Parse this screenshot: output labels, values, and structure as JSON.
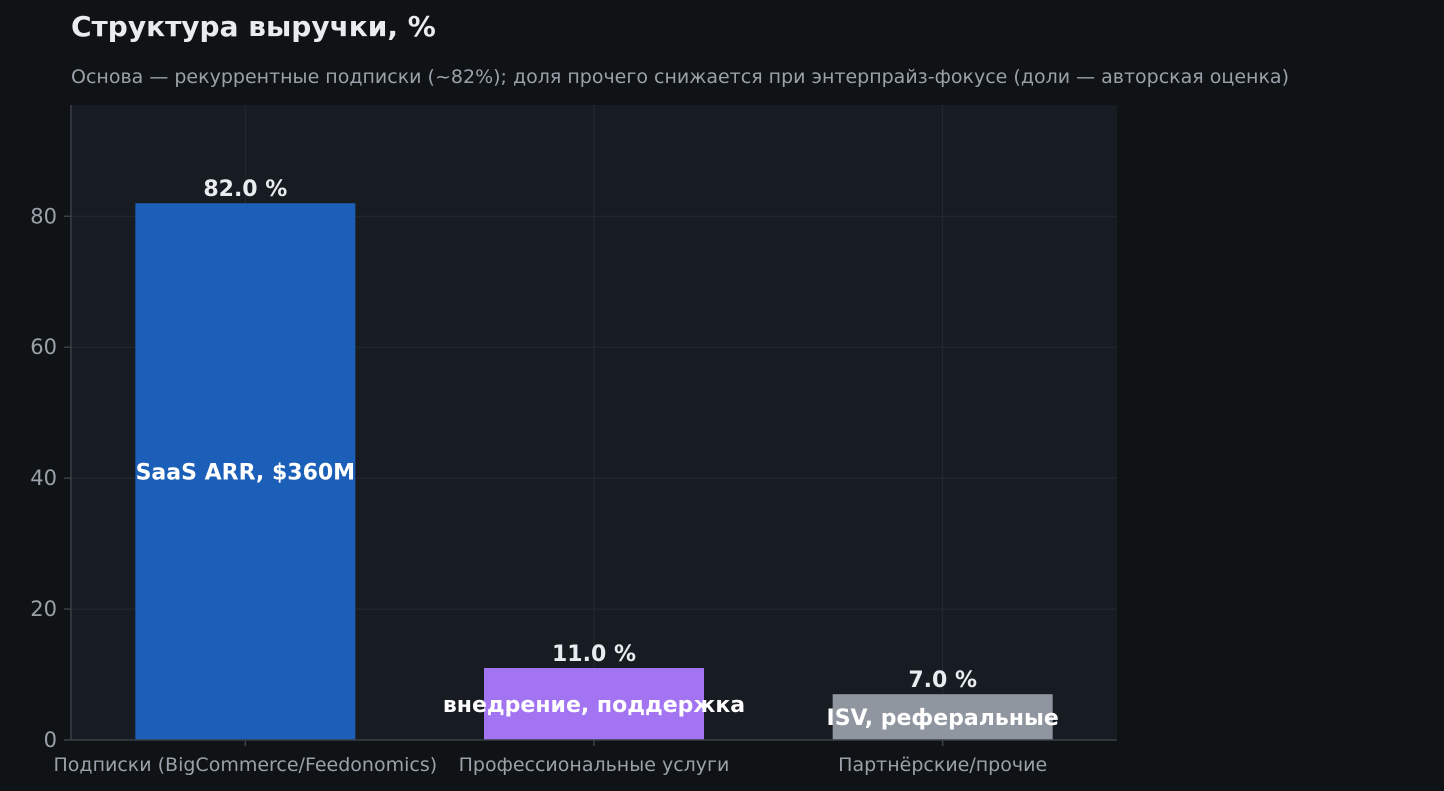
{
  "chart_data": {
    "type": "bar",
    "title": "Структура выручки, %",
    "subtitle": "Основа — рекуррентные подписки (~82%); доля прочего снижается при энтерпрайз-фокусе (доли — авторская оценка)",
    "xlabel": "",
    "ylabel": "",
    "ylim": [
      0,
      97
    ],
    "yticks": [
      0,
      20,
      40,
      60,
      80
    ],
    "grid": true,
    "categories": [
      "Подписки (BigCommerce/Feedonomics)",
      "Профессиональные услуги",
      "Партнёрские/прочие"
    ],
    "values": [
      82.0,
      11.0,
      7.0
    ],
    "value_labels": [
      "82.0 %",
      "11.0 %",
      "7.0 %"
    ],
    "inner_labels": [
      "SaaS ARR, $360M",
      "внедрение, поддержка",
      "ISV, реферальные"
    ],
    "colors": [
      "#1c5fb8",
      "#a274f2",
      "#8f96a0"
    ]
  },
  "theme": {
    "page_background": "#0f1316",
    "plot_background": "#171b22",
    "grid_color": "#252a32",
    "axis_color": "#3a4048"
  }
}
